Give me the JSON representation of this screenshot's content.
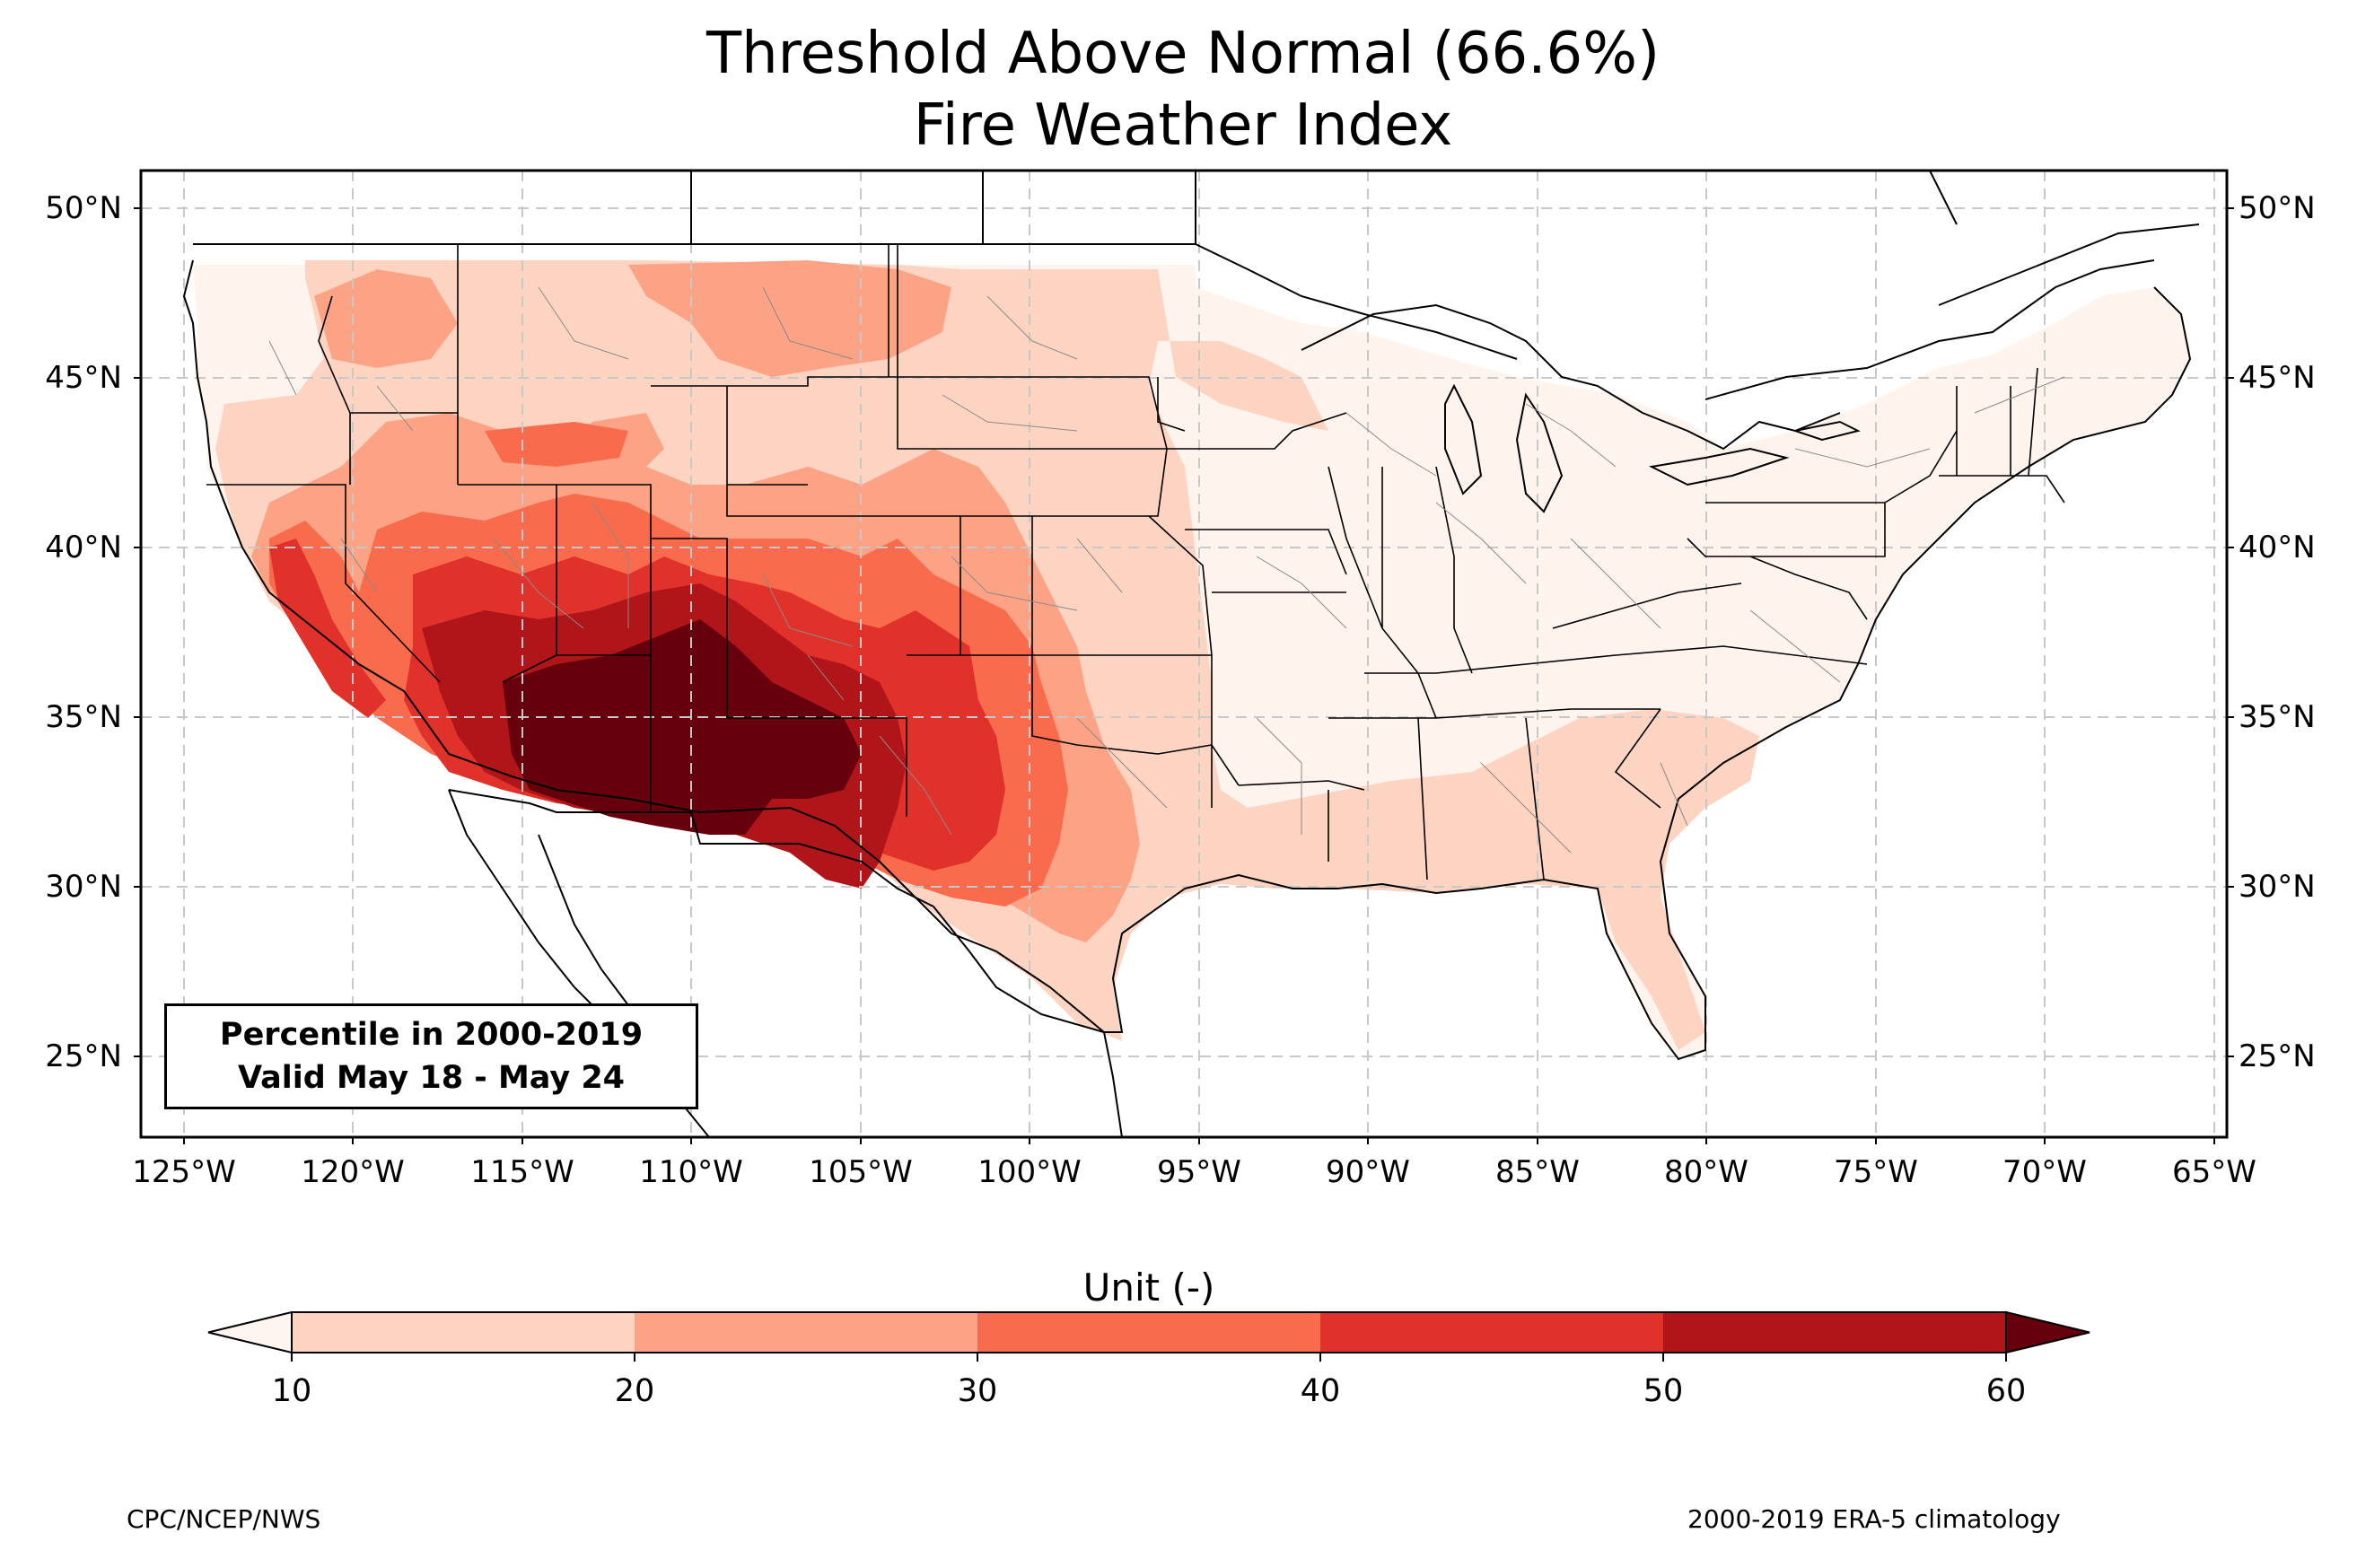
{
  "title": {
    "line1": "Threshold Above Normal (66.6%)",
    "line2": "Fire Weather Index"
  },
  "map": {
    "projection": "PlateCarree",
    "extent_lon": [
      -126.5,
      -64.9
    ],
    "extent_lat": [
      22.7,
      51.3
    ],
    "gridlines": "dashed gray",
    "lat_ticks": [
      "50°N",
      "45°N",
      "40°N",
      "35°N",
      "30°N",
      "25°N"
    ],
    "lon_ticks": [
      "125°W",
      "120°W",
      "115°W",
      "110°W",
      "105°W",
      "100°W",
      "95°W",
      "90°W",
      "85°W",
      "80°W",
      "75°W",
      "70°W",
      "65°W"
    ]
  },
  "inset": {
    "line1": "Percentile in 2000-2019",
    "line2": "Valid May 18 - May 24"
  },
  "colorbar": {
    "label": "Unit (-)",
    "ticks": [
      "10",
      "20",
      "30",
      "40",
      "50",
      "60"
    ],
    "colors": [
      "#fdd3c1",
      "#fca385",
      "#f86b4c",
      "#e0312b",
      "#b01519",
      "#6c010f"
    ],
    "under_color": "#fff5f0",
    "over_color": "#67000d",
    "extend": "both"
  },
  "footer": {
    "left": "CPC/NCEP/NWS",
    "right": "2000-2019 ERA-5 climatology"
  }
}
